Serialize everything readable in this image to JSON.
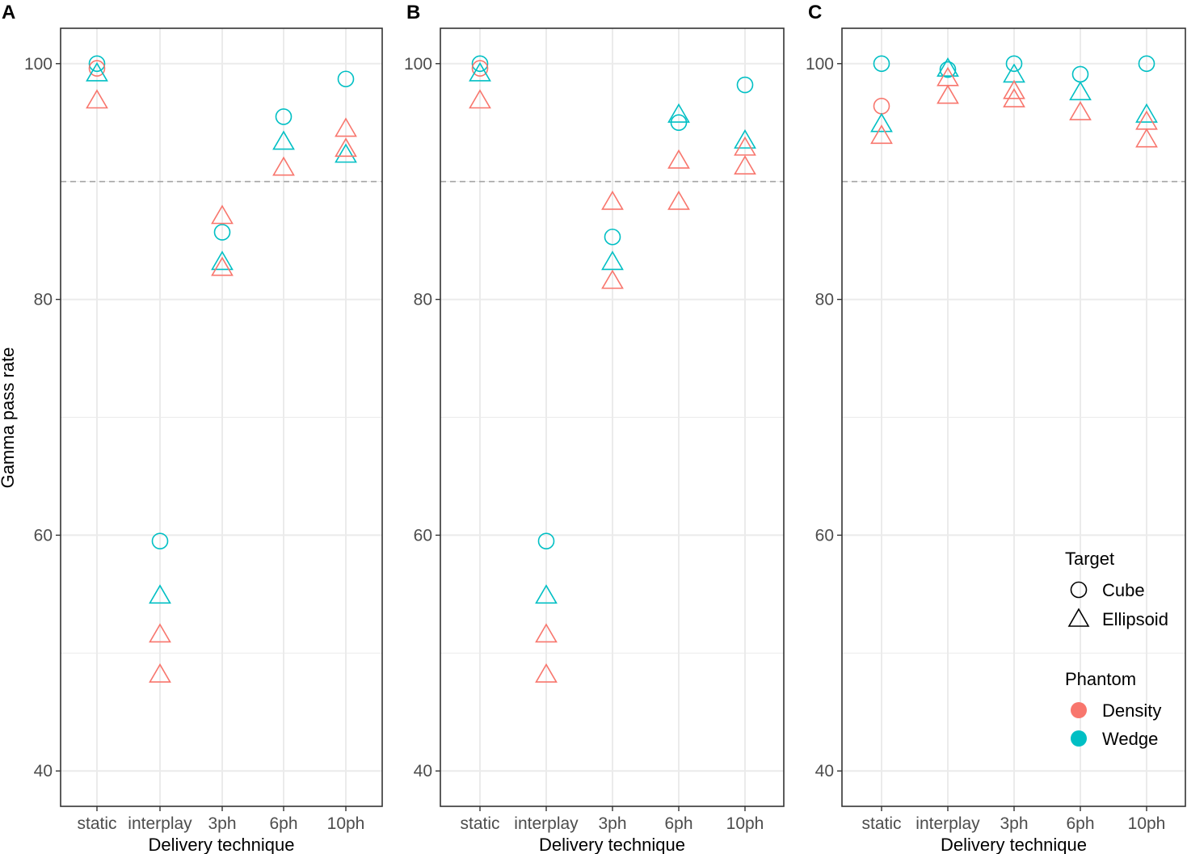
{
  "figure": {
    "ylabel": "Gamma pass rate",
    "xlabel": "Delivery technique"
  },
  "legend": {
    "target_title": "Target",
    "target_items": [
      {
        "label": "Cube",
        "shape": "circle"
      },
      {
        "label": "Ellipsoid",
        "shape": "triangle"
      }
    ],
    "phantom_title": "Phantom",
    "phantom_items": [
      {
        "label": "Density",
        "color": "#F8766D"
      },
      {
        "label": "Wedge",
        "color": "#00BFC4"
      }
    ]
  },
  "colors": {
    "Density": "#F8766D",
    "Wedge": "#00BFC4",
    "panel_border": "#333333",
    "grid": "#ebebeb",
    "threshold_line": "#a6a6a6"
  },
  "chart_data": [
    {
      "panel": "A",
      "type": "scatter",
      "xlabel": "Delivery technique",
      "ylabel": "Gamma pass rate",
      "categories": [
        "static",
        "interplay",
        "3ph",
        "6ph",
        "10ph"
      ],
      "ylim": [
        37,
        103
      ],
      "yticks": [
        40,
        60,
        80,
        100
      ],
      "threshold": 90,
      "series": [
        {
          "phantom": "Wedge",
          "target": "Cube",
          "values": [
            [
              100,
              59.5,
              85.7,
              95.5,
              98.7
            ]
          ]
        },
        {
          "phantom": "Density",
          "target": "Cube",
          "values": [
            [
              99.6
            ]
          ]
        },
        {
          "phantom": "Wedge",
          "target": "Ellipsoid",
          "values": [
            [
              99.2,
              54.9,
              83.2,
              93.4,
              92.3
            ]
          ]
        },
        {
          "phantom": "Density",
          "target": "Ellipsoid",
          "values": [
            [
              96.9,
              51.6,
              82.7,
              91.2,
              92.8
            ],
            [
              null,
              48.2,
              87.1,
              null,
              94.5
            ]
          ]
        }
      ]
    },
    {
      "panel": "B",
      "type": "scatter",
      "xlabel": "Delivery technique",
      "ylabel": "",
      "categories": [
        "static",
        "interplay",
        "3ph",
        "6ph",
        "10ph"
      ],
      "ylim": [
        37,
        103
      ],
      "yticks": [
        40,
        60,
        80,
        100
      ],
      "threshold": 90,
      "series": [
        {
          "phantom": "Wedge",
          "target": "Cube",
          "values": [
            [
              100,
              59.5,
              85.3,
              95.0,
              98.2
            ]
          ]
        },
        {
          "phantom": "Density",
          "target": "Cube",
          "values": [
            [
              99.6
            ]
          ]
        },
        {
          "phantom": "Wedge",
          "target": "Ellipsoid",
          "values": [
            [
              99.2,
              54.9,
              83.2,
              95.7,
              93.5
            ]
          ]
        },
        {
          "phantom": "Density",
          "target": "Ellipsoid",
          "values": [
            [
              96.9,
              51.6,
              81.6,
              91.8,
              92.9
            ],
            [
              null,
              48.2,
              88.3,
              88.3,
              91.3
            ]
          ]
        }
      ]
    },
    {
      "panel": "C",
      "type": "scatter",
      "xlabel": "Delivery technique",
      "ylabel": "",
      "categories": [
        "static",
        "interplay",
        "3ph",
        "6ph",
        "10ph"
      ],
      "ylim": [
        37,
        103
      ],
      "yticks": [
        40,
        60,
        80,
        100
      ],
      "threshold": 90,
      "series": [
        {
          "phantom": "Wedge",
          "target": "Cube",
          "values": [
            [
              100,
              99.5,
              100,
              99.1,
              100
            ]
          ]
        },
        {
          "phantom": "Density",
          "target": "Cube",
          "values": [
            [
              96.4
            ]
          ]
        },
        {
          "phantom": "Wedge",
          "target": "Ellipsoid",
          "values": [
            [
              94.9,
              99.6,
              99.1,
              97.6,
              95.7
            ]
          ]
        },
        {
          "phantom": "Density",
          "target": "Ellipsoid",
          "values": [
            [
              93.9,
              98.8,
              97.7,
              95.9,
              95.1
            ],
            [
              null,
              97.3,
              97.0,
              null,
              93.6
            ]
          ]
        }
      ]
    }
  ]
}
